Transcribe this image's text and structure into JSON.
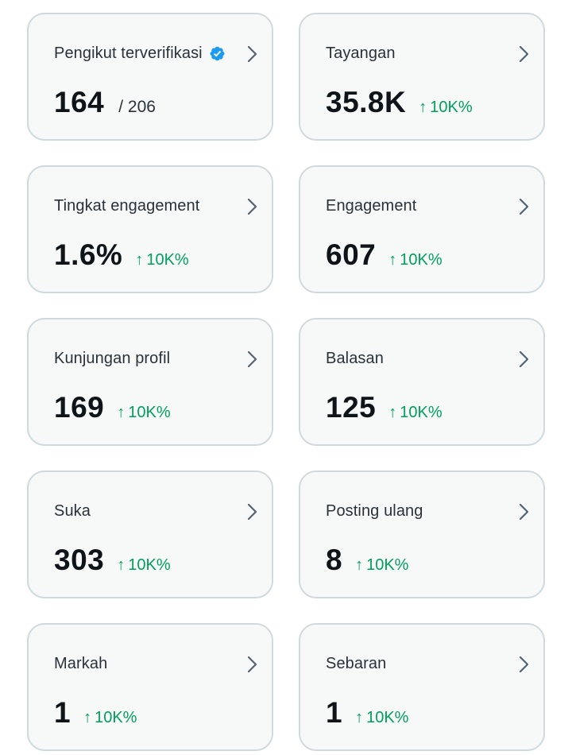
{
  "colors": {
    "card_background": "#f7f9f9",
    "card_border": "#cfd9de",
    "value_text": "#0f1419",
    "label_text": "#2a3137",
    "positive_change": "#00a05a",
    "verified_badge": "#1d9bf0",
    "chevron": "#536471"
  },
  "cards": [
    {
      "title": "Pengikut terverifikasi",
      "value": "164",
      "total": "/ 206",
      "change": "",
      "verified_icon": "verified-badge-icon"
    },
    {
      "title": "Tayangan",
      "value": "35.8K",
      "change": "10K%"
    },
    {
      "title": "Tingkat engagement",
      "value": "1.6%",
      "change": "10K%"
    },
    {
      "title": "Engagement",
      "value": "607",
      "change": "10K%"
    },
    {
      "title": "Kunjungan profil",
      "value": "169",
      "change": "10K%"
    },
    {
      "title": "Balasan",
      "value": "125",
      "change": "10K%"
    },
    {
      "title": "Suka",
      "value": "303",
      "change": "10K%"
    },
    {
      "title": "Posting ulang",
      "value": "8",
      "change": "10K%"
    },
    {
      "title": "Markah",
      "value": "1",
      "change": "10K%"
    },
    {
      "title": "Sebaran",
      "value": "1",
      "change": "10K%"
    }
  ],
  "change_arrow": "↑"
}
